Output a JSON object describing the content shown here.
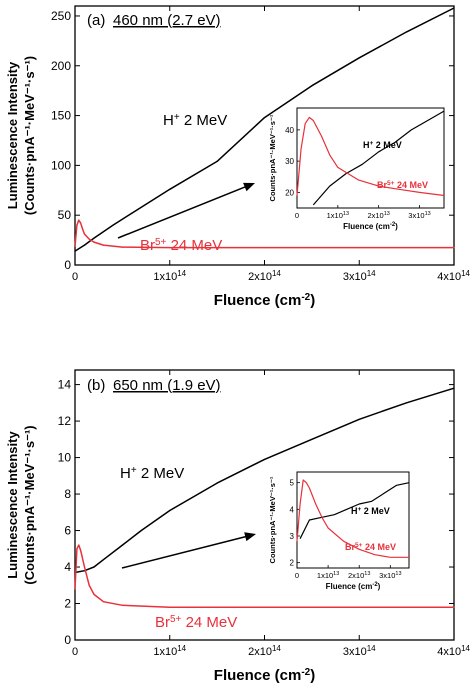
{
  "chart_data": [
    {
      "type": "line",
      "panel_label": "(a)",
      "title": "460 nm (2.7 eV)",
      "xlabel": "Fluence (cm",
      "xlabel_sup": "-2",
      "xlabel_end": ")",
      "ylabel_line1": "Luminescence Intensity",
      "ylabel_line2": "(Counts·pnA⁻¹·MeV⁻¹·s⁻¹)",
      "xlim": [
        0,
        400000000000000.0
      ],
      "ylim": [
        0,
        260
      ],
      "x_ticks": [
        0,
        100000000000000.0,
        200000000000000.0,
        300000000000000.0,
        400000000000000.0
      ],
      "x_tick_labels": [
        "0",
        "1x10",
        "2x10",
        "3x10",
        "4x10"
      ],
      "x_tick_exp": "14",
      "y_ticks": [
        0,
        50,
        100,
        150,
        200,
        250
      ],
      "y_tick_labels": [
        "0",
        "50",
        "100",
        "150",
        "200",
        "250"
      ],
      "grid": false,
      "colors": {
        "h": "#000000",
        "br": "#e8313a"
      },
      "series": [
        {
          "name": "H+ 2 MeV",
          "label_main": "H",
          "label_sup": "+",
          "label_rest": " 2 MeV",
          "color": "#000000",
          "x": [
            0,
            10000000000000.0,
            20000000000000.0,
            40000000000000.0,
            60000000000000.0,
            80000000000000.0,
            100000000000000.0,
            150000000000000.0,
            200000000000000.0,
            250000000000000.0,
            300000000000000.0,
            350000000000000.0,
            400000000000000.0
          ],
          "y": [
            14,
            20,
            27,
            40,
            52,
            64,
            76,
            104,
            148,
            180,
            208,
            234,
            258
          ]
        },
        {
          "name": "Br5+ 24 MeV",
          "label_main": "Br",
          "label_sup": "5+",
          "label_rest": " 24 MeV",
          "color": "#e8313a",
          "x": [
            0,
            2000000000000.0,
            4000000000000.0,
            6000000000000.0,
            8000000000000.0,
            10000000000000.0,
            15000000000000.0,
            20000000000000.0,
            30000000000000.0,
            50000000000000.0,
            100000000000000.0,
            200000000000000.0,
            300000000000000.0,
            400000000000000.0
          ],
          "y": [
            19,
            40,
            45,
            42,
            36,
            31,
            26,
            23,
            20,
            18,
            17.5,
            17.5,
            17.5,
            17.5
          ]
        }
      ],
      "inset": {
        "xlabel": "Fluence (cm",
        "xlabel_sup": "-2",
        "xlabel_end": ")",
        "ylabel": "Counts·pnA⁻¹·MeV⁻¹·s⁻¹",
        "xlim": [
          0,
          36000000000000.0
        ],
        "ylim": [
          15,
          47
        ],
        "x_ticks": [
          0,
          10000000000000.0,
          20000000000000.0,
          30000000000000.0
        ],
        "x_tick_labels": [
          "0",
          "1x10",
          "2x10",
          "3x10"
        ],
        "x_tick_exp": "13",
        "y_ticks": [
          20,
          30,
          40
        ],
        "y_tick_labels": [
          "20",
          "30",
          "40"
        ],
        "series": [
          {
            "name": "H+ 2 MeV",
            "label_main": "H",
            "label_sup": "+",
            "label_rest": " 2 MeV",
            "color": "#000000",
            "x": [
              4000000000000.0,
              8000000000000.0,
              12000000000000.0,
              16000000000000.0,
              20000000000000.0,
              24000000000000.0,
              28000000000000.0,
              32000000000000.0,
              36000000000000.0
            ],
            "y": [
              16,
              22,
              26,
              29,
              33,
              36,
              40,
              43,
              46
            ]
          },
          {
            "name": "Br5+ 24 MeV",
            "label_main": "Br",
            "label_sup": "5+",
            "label_rest": " 24 MeV",
            "color": "#e8313a",
            "x": [
              0,
              1000000000000.0,
              2000000000000.0,
              3000000000000.0,
              4000000000000.0,
              6000000000000.0,
              8000000000000.0,
              10000000000000.0,
              15000000000000.0,
              20000000000000.0,
              25000000000000.0,
              30000000000000.0,
              36000000000000.0
            ],
            "y": [
              19,
              34,
              42,
              44,
              43,
              38,
              32,
              28,
              24,
              22,
              21,
              20,
              19
            ]
          }
        ]
      }
    },
    {
      "type": "line",
      "panel_label": "(b)",
      "title": "650 nm (1.9 eV)",
      "xlabel": "Fluence (cm",
      "xlabel_sup": "-2",
      "xlabel_end": ")",
      "ylabel_line1": "Luminescence Intensity",
      "ylabel_line2": "(Counts·pnA⁻¹·MeV⁻¹·s⁻¹)",
      "xlim": [
        0,
        400000000000000.0
      ],
      "ylim": [
        0,
        14.8
      ],
      "x_ticks": [
        0,
        100000000000000.0,
        200000000000000.0,
        300000000000000.0,
        400000000000000.0
      ],
      "x_tick_labels": [
        "0",
        "1x10",
        "2x10",
        "3x10",
        "4x10"
      ],
      "x_tick_exp": "14",
      "y_ticks": [
        0,
        2,
        4,
        6,
        8,
        10,
        12,
        14
      ],
      "y_tick_labels": [
        "0",
        "2",
        "4",
        "6",
        "8",
        "10",
        "12",
        "14"
      ],
      "grid": false,
      "colors": {
        "h": "#000000",
        "br": "#e8313a"
      },
      "series": [
        {
          "name": "H+ 2 MeV",
          "label_main": "H",
          "label_sup": "+",
          "label_rest": " 2 MeV",
          "color": "#000000",
          "x": [
            0,
            10000000000000.0,
            20000000000000.0,
            30000000000000.0,
            50000000000000.0,
            70000000000000.0,
            100000000000000.0,
            150000000000000.0,
            200000000000000.0,
            250000000000000.0,
            300000000000000.0,
            350000000000000.0,
            400000000000000.0
          ],
          "y": [
            3.7,
            3.8,
            4.0,
            4.4,
            5.2,
            6.0,
            7.1,
            8.6,
            9.9,
            11.0,
            12.1,
            13.0,
            13.8
          ]
        },
        {
          "name": "Br5+ 24 MeV",
          "label_main": "Br",
          "label_sup": "5+",
          "label_rest": " 24 MeV",
          "color": "#e8313a",
          "x": [
            0,
            2000000000000.0,
            4000000000000.0,
            6000000000000.0,
            10000000000000.0,
            15000000000000.0,
            20000000000000.0,
            30000000000000.0,
            50000000000000.0,
            100000000000000.0,
            200000000000000.0,
            300000000000000.0,
            400000000000000.0
          ],
          "y": [
            2.8,
            5.0,
            5.2,
            4.9,
            4.0,
            3.0,
            2.5,
            2.1,
            1.9,
            1.8,
            1.8,
            1.8,
            1.8
          ]
        }
      ],
      "inset": {
        "xlabel": "Fluence (cm",
        "xlabel_sup": "-2",
        "xlabel_end": ")",
        "ylabel": "Counts·pnA⁻¹·MeV⁻¹·s⁻¹",
        "xlim": [
          0,
          36000000000000.0
        ],
        "ylim": [
          1.8,
          5.4
        ],
        "x_ticks": [
          0,
          10000000000000.0,
          20000000000000.0,
          30000000000000.0
        ],
        "x_tick_labels": [
          "0",
          "1x10",
          "2x10",
          "3x10"
        ],
        "x_tick_exp": "13",
        "y_ticks": [
          2,
          3,
          4,
          5
        ],
        "y_tick_labels": [
          "2",
          "3",
          "4",
          "5"
        ],
        "series": [
          {
            "name": "H+ 2 MeV",
            "label_main": "H",
            "label_sup": "+",
            "label_rest": " 2 MeV",
            "color": "#000000",
            "x": [
              1000000000000.0,
              4000000000000.0,
              8000000000000.0,
              12000000000000.0,
              16000000000000.0,
              20000000000000.0,
              24000000000000.0,
              28000000000000.0,
              32000000000000.0,
              36000000000000.0
            ],
            "y": [
              2.9,
              3.6,
              3.7,
              3.8,
              4.0,
              4.2,
              4.3,
              4.6,
              4.9,
              5.0
            ]
          },
          {
            "name": "Br5+ 24 MeV",
            "label_main": "Br",
            "label_sup": "5+",
            "label_rest": " 24 MeV",
            "color": "#e8313a",
            "x": [
              0,
              1000000000000.0,
              2000000000000.0,
              3000000000000.0,
              4000000000000.0,
              6000000000000.0,
              8000000000000.0,
              10000000000000.0,
              15000000000000.0,
              20000000000000.0,
              25000000000000.0,
              30000000000000.0,
              36000000000000.0
            ],
            "y": [
              2.8,
              4.2,
              5.1,
              5.0,
              4.8,
              4.2,
              3.7,
              3.3,
              2.8,
              2.5,
              2.3,
              2.2,
              2.2
            ]
          }
        ]
      }
    }
  ]
}
